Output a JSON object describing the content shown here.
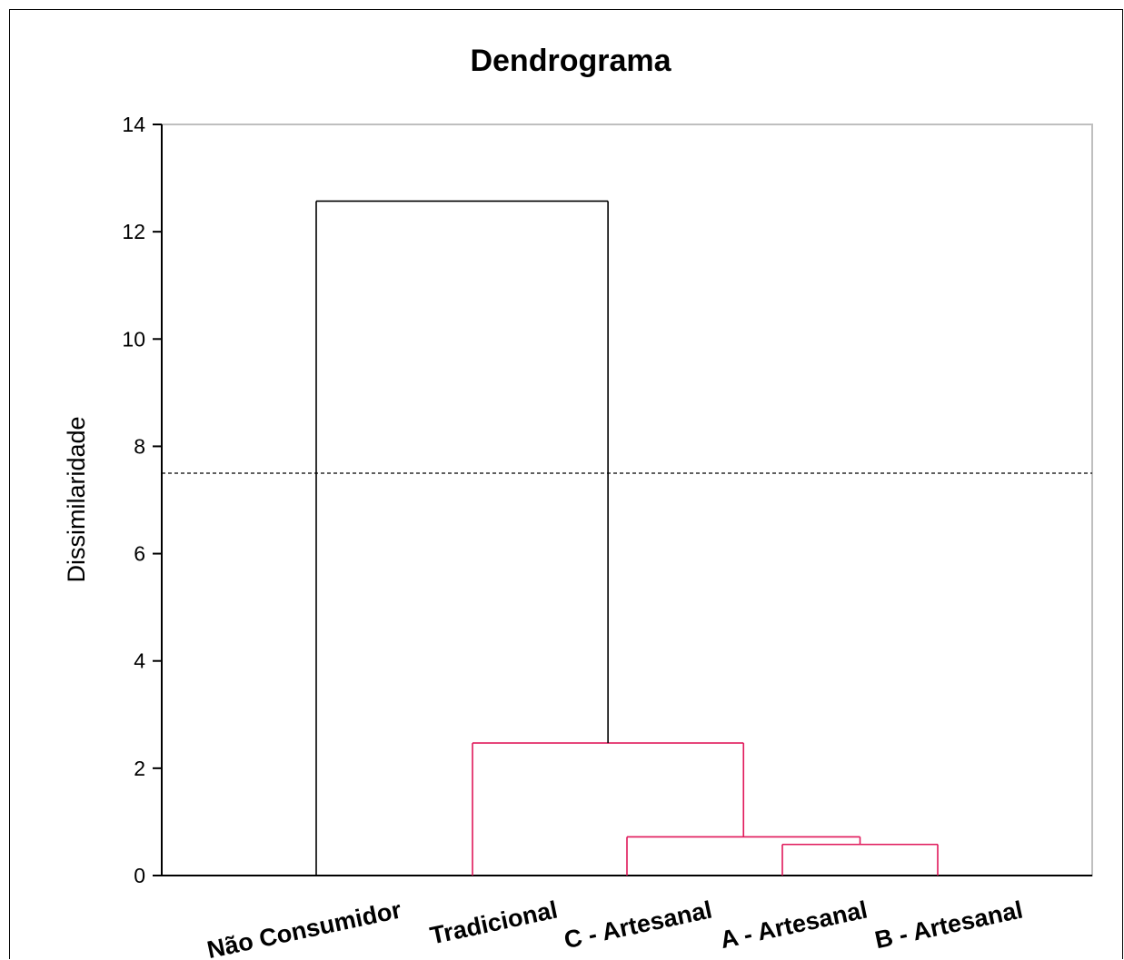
{
  "chart_data": {
    "type": "dendrogram",
    "title": "Dendrograma",
    "ylabel": "Dissimilaridade",
    "xlabel": "",
    "ylim": [
      0,
      14
    ],
    "yticks": [
      0,
      2,
      4,
      6,
      8,
      10,
      12,
      14
    ],
    "leaves": [
      "Não Consumidor",
      "Tradicional",
      "C - Artesanal",
      "A - Artesanal",
      "B - Artesanal"
    ],
    "merges": [
      {
        "left": "A - Artesanal",
        "right": "B - Artesanal",
        "height": 0.58,
        "color": "#e0185a"
      },
      {
        "left": "C - Artesanal",
        "right": "A - Artesanal + B - Artesanal",
        "height": 0.72,
        "color": "#e0185a"
      },
      {
        "left": "Tradicional",
        "right": "C - Artesanal + A - Artesanal + B - Artesanal",
        "height": 2.47,
        "color": "#e0185a"
      },
      {
        "left": "Não Consumidor",
        "right": "Tradicional + C - Artesanal + A - Artesanal + B - Artesanal",
        "height": 12.57,
        "color": "#000000"
      }
    ],
    "cut_line": 7.5,
    "colors": {
      "cluster": "#e0185a",
      "root": "#000000",
      "axis": "#000000",
      "frame": "#bfbfbf"
    }
  }
}
